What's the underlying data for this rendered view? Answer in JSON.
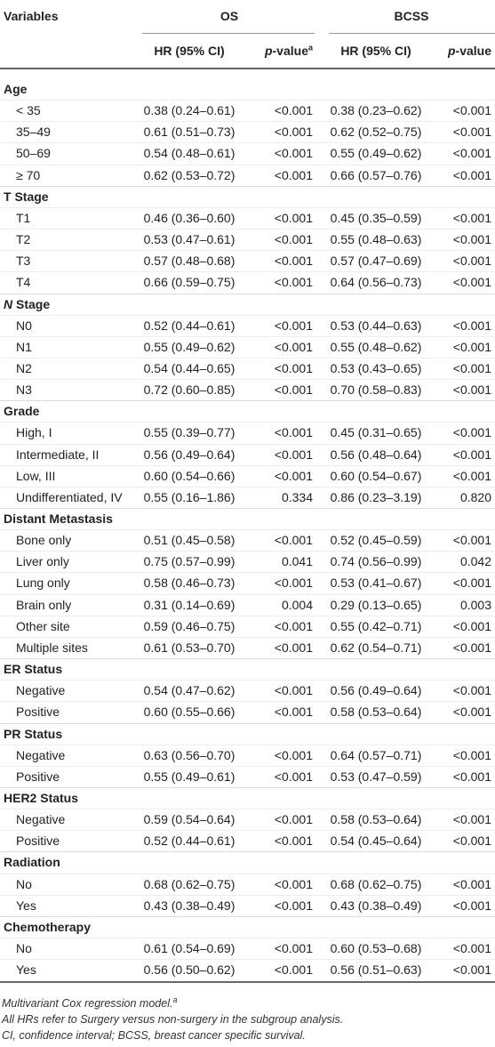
{
  "header": {
    "variables": "Variables",
    "groups": [
      "OS",
      "BCSS"
    ],
    "columns": [
      {
        "text": "HR (95% CI)"
      },
      {
        "italic": "p",
        "text": "-value",
        "sup": "a"
      },
      {
        "text": "HR (95% CI)"
      },
      {
        "italic": "p",
        "text": "-value"
      }
    ]
  },
  "groups": [
    {
      "title": "Age",
      "rows": [
        [
          "< 35",
          "0.38 (0.24–0.61)",
          "<0.001",
          "0.38 (0.23–0.62)",
          "<0.001"
        ],
        [
          "35–49",
          "0.61 (0.51–0.73)",
          "<0.001",
          "0.62 (0.52–0.75)",
          "<0.001"
        ],
        [
          "50–69",
          "0.54 (0.48–0.61)",
          "<0.001",
          "0.55 (0.49–0.62)",
          "<0.001"
        ],
        [
          "≥ 70",
          "0.62 (0.53–0.72)",
          "<0.001",
          "0.66 (0.57–0.76)",
          "<0.001"
        ]
      ]
    },
    {
      "title": "T Stage",
      "rows": [
        [
          "T1",
          "0.46 (0.36–0.60)",
          "<0.001",
          "0.45 (0.35–0.59)",
          "<0.001"
        ],
        [
          "T2",
          "0.53 (0.47–0.61)",
          "<0.001",
          "0.55 (0.48–0.63)",
          "<0.001"
        ],
        [
          "T3",
          "0.57 (0.48–0.68)",
          "<0.001",
          "0.57 (0.47–0.69)",
          "<0.001"
        ],
        [
          "T4",
          "0.66 (0.59–0.75)",
          "<0.001",
          "0.64 (0.56–0.73)",
          "<0.001"
        ]
      ]
    },
    {
      "title_italic": "N",
      "title": " Stage",
      "rows": [
        [
          "N0",
          "0.52 (0.44–0.61)",
          "<0.001",
          "0.53 (0.44–0.63)",
          "<0.001"
        ],
        [
          "N1",
          "0.55 (0.49–0.62)",
          "<0.001",
          "0.55 (0.48–0.62)",
          "<0.001"
        ],
        [
          "N2",
          "0.54 (0.44–0.65)",
          "<0.001",
          "0.53 (0.43–0.65)",
          "<0.001"
        ],
        [
          "N3",
          "0.72 (0.60–0.85)",
          "<0.001",
          "0.70 (0.58–0.83)",
          "<0.001"
        ]
      ]
    },
    {
      "title": "Grade",
      "rows": [
        [
          "High, I",
          "0.55 (0.39–0.77)",
          "<0.001",
          "0.45 (0.31–0.65)",
          "<0.001"
        ],
        [
          "Intermediate, II",
          "0.56 (0.49–0.64)",
          "<0.001",
          "0.56 (0.48–0.64)",
          "<0.001"
        ],
        [
          "Low, III",
          "0.60 (0.54–0.66)",
          "<0.001",
          "0.60 (0.54–0.67)",
          "<0.001"
        ],
        [
          "Undifferentiated, IV",
          "0.55 (0.16–1.86)",
          "0.334",
          "0.86 (0.23–3.19)",
          "0.820"
        ]
      ]
    },
    {
      "title": "Distant Metastasis",
      "rows": [
        [
          "Bone only",
          "0.51 (0.45–0.58)",
          "<0.001",
          "0.52 (0.45–0.59)",
          "<0.001"
        ],
        [
          "Liver only",
          "0.75 (0.57–0.99)",
          "0.041",
          "0.74 (0.56–0.99)",
          "0.042"
        ],
        [
          "Lung only",
          "0.58 (0.46–0.73)",
          "<0.001",
          "0.53 (0.41–0.67)",
          "<0.001"
        ],
        [
          "Brain only",
          "0.31 (0.14–0.69)",
          "0.004",
          "0.29 (0.13–0.65)",
          "0.003"
        ],
        [
          "Other site",
          "0.59 (0.46–0.75)",
          "<0.001",
          "0.55 (0.42–0.71)",
          "<0.001"
        ],
        [
          "Multiple sites",
          "0.61 (0.53–0.70)",
          "<0.001",
          "0.62 (0.54–0.71)",
          "<0.001"
        ]
      ]
    },
    {
      "title": "ER Status",
      "rows": [
        [
          "Negative",
          "0.54 (0.47–0.62)",
          "<0.001",
          "0.56 (0.49–0.64)",
          "<0.001"
        ],
        [
          "Positive",
          "0.60 (0.55–0.66)",
          "<0.001",
          "0.58 (0.53–0.64)",
          "<0.001"
        ]
      ]
    },
    {
      "title": "PR Status",
      "rows": [
        [
          "Negative",
          "0.63 (0.56–0.70)",
          "<0.001",
          "0.64 (0.57–0.71)",
          "<0.001"
        ],
        [
          "Positive",
          "0.55 (0.49–0.61)",
          "<0.001",
          "0.53 (0.47–0.59)",
          "<0.001"
        ]
      ]
    },
    {
      "title": "HER2 Status",
      "rows": [
        [
          "Negative",
          "0.59 (0.54–0.64)",
          "<0.001",
          "0.58 (0.53–0.64)",
          "<0.001"
        ],
        [
          "Positive",
          "0.52 (0.44–0.61)",
          "<0.001",
          "0.54 (0.45–0.64)",
          "<0.001"
        ]
      ]
    },
    {
      "title": "Radiation",
      "rows": [
        [
          "No",
          "0.68 (0.62–0.75)",
          "<0.001",
          "0.68 (0.62–0.75)",
          "<0.001"
        ],
        [
          "Yes",
          "0.43 (0.38–0.49)",
          "<0.001",
          "0.43 (0.38–0.49)",
          "<0.001"
        ]
      ]
    },
    {
      "title": "Chemotherapy",
      "rows": [
        [
          "No",
          "0.61 (0.54–0.69)",
          "<0.001",
          "0.60 (0.53–0.68)",
          "<0.001"
        ],
        [
          "Yes",
          "0.56 (0.50–0.62)",
          "<0.001",
          "0.56 (0.51–0.63)",
          "<0.001"
        ]
      ]
    }
  ],
  "footnotes": [
    {
      "sup": "a",
      "text": "Multivariant Cox regression model."
    },
    {
      "text": "All HRs refer to Surgery versus non-surgery in the subgroup analysis."
    },
    {
      "text": "CI, confidence interval; BCSS, breast cancer specific survival."
    }
  ]
}
